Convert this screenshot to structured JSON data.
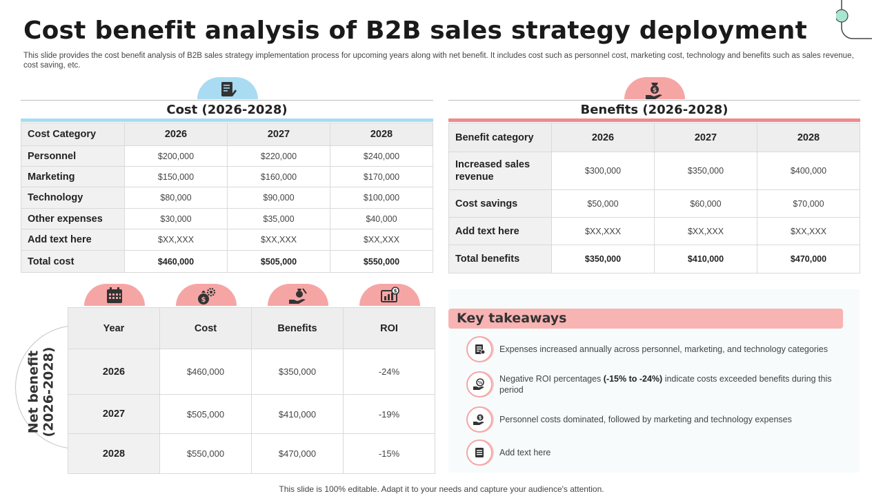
{
  "title": "Cost benefit analysis of B2B sales strategy deployment",
  "subtitle": "This slide provides the cost benefit analysis of B2B sales strategy implementation process for upcoming years along with net benefit. It includes cost such as personnel cost, marketing cost, technology and benefits such as sales revenue, cost saving, etc.",
  "colors": {
    "blue_accent": "#a9dcf2",
    "pink_accent": "#f6a5a5",
    "salmon_bar": "#ef8a8a",
    "header_gray": "#eeeeee"
  },
  "cost": {
    "heading": "Cost (2026-2028)",
    "icon": "document-pen-icon",
    "columns": [
      "Cost Category",
      "2026",
      "2027",
      "2028"
    ],
    "rows": [
      [
        "Personnel",
        "$200,000",
        "$220,000",
        "$240,000"
      ],
      [
        "Marketing",
        "$150,000",
        "$160,000",
        "$170,000"
      ],
      [
        "Technology",
        "$80,000",
        "$90,000",
        "$100,000"
      ],
      [
        "Other expenses",
        "$30,000",
        "$35,000",
        "$40,000"
      ],
      [
        "Add  text here",
        "$XX,XXX",
        "$XX,XXX",
        "$XX,XXX"
      ],
      [
        "Total cost",
        "$460,000",
        "$505,000",
        "$550,000"
      ]
    ]
  },
  "benefits": {
    "heading": "Benefits (2026-2028)",
    "icon": "money-hand-icon",
    "columns": [
      "Benefit category",
      "2026",
      "2027",
      "2028"
    ],
    "rows": [
      [
        "Increased sales revenue",
        "$300,000",
        "$350,000",
        "$400,000"
      ],
      [
        "Cost savings",
        "$50,000",
        "$60,000",
        "$70,000"
      ],
      [
        "Add  text here",
        "$XX,XXX",
        "$XX,XXX",
        "$XX,XXX"
      ],
      [
        "Total benefits",
        "$350,000",
        "$410,000",
        "$470,000"
      ]
    ]
  },
  "net_benefit": {
    "label_line1": "Net benefit",
    "label_line2": "(2026-2028)",
    "column_icons": [
      "calendar-icon",
      "money-bag-gear-icon",
      "hand-money-icon",
      "roi-chart-icon"
    ],
    "columns": [
      "Year",
      "Cost",
      "Benefits",
      "ROI"
    ],
    "rows": [
      [
        "2026",
        "$460,000",
        "$350,000",
        "-24%"
      ],
      [
        "2027",
        "$505,000",
        "$410,000",
        "-19%"
      ],
      [
        "2028",
        "$550,000",
        "$470,000",
        "-15%"
      ]
    ]
  },
  "takeaways": {
    "heading": "Key takeaways",
    "items": [
      {
        "icon": "report-icon",
        "text": "Expenses increased annually across personnel, marketing, and technology categories"
      },
      {
        "icon": "percent-hand-icon",
        "text_before": "Negative ROI percentages ",
        "text_bold": "(-15% to -24%)",
        "text_after": " indicate costs exceeded benefits during this period"
      },
      {
        "icon": "dollar-hand-icon",
        "text": "Personnel costs dominated, followed by marketing and technology expenses"
      },
      {
        "icon": "notes-icon",
        "text": "Add text here"
      }
    ]
  },
  "footer": "This slide is 100% editable. Adapt it to your needs and capture your audience's attention."
}
